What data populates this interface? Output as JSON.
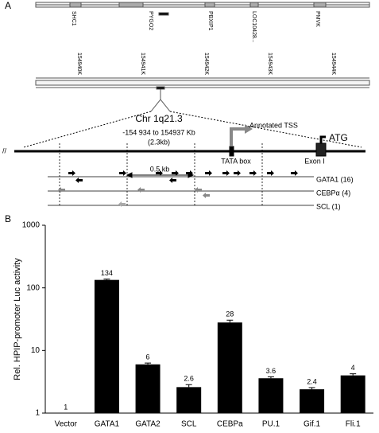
{
  "panel_a": {
    "label": "A",
    "genes": [
      "SHC1",
      "PYGO2",
      "PBXIP1",
      "LOC10428...",
      "PMVK"
    ],
    "coordinates": [
      "154940K",
      "154941K",
      "154942K",
      "154943K",
      "154944K"
    ],
    "chromosome": "Chr 1q21.3",
    "range": "-154 934 to 154937 Kb",
    "length": "(2.3kb)",
    "scale": "0.5 kb",
    "break": "//",
    "tss": "Annotated TSS",
    "tata": "TATA box",
    "exon": "Exon I",
    "atg": "ATG",
    "tracks": [
      "GATA1 (16)",
      "CEBPα (4)",
      "SCL (1)"
    ]
  },
  "chart_data": {
    "type": "bar",
    "panel_label": "B",
    "ylabel": "Rel. HPIP-promoter Luc activity",
    "categories": [
      "Vector",
      "GATA1",
      "GATA2",
      "SCL",
      "CEBPa",
      "PU.1",
      "Gif.1",
      "Fli.1"
    ],
    "values": [
      1,
      134,
      6,
      2.6,
      28,
      3.6,
      2.4,
      4
    ],
    "errors": [
      0,
      4,
      0.3,
      0.25,
      2.5,
      0.2,
      0.15,
      0.25
    ],
    "color": "#000000",
    "log_scale": true,
    "ylim": [
      1,
      1000
    ],
    "yticks": [
      1,
      10,
      100,
      1000
    ]
  }
}
